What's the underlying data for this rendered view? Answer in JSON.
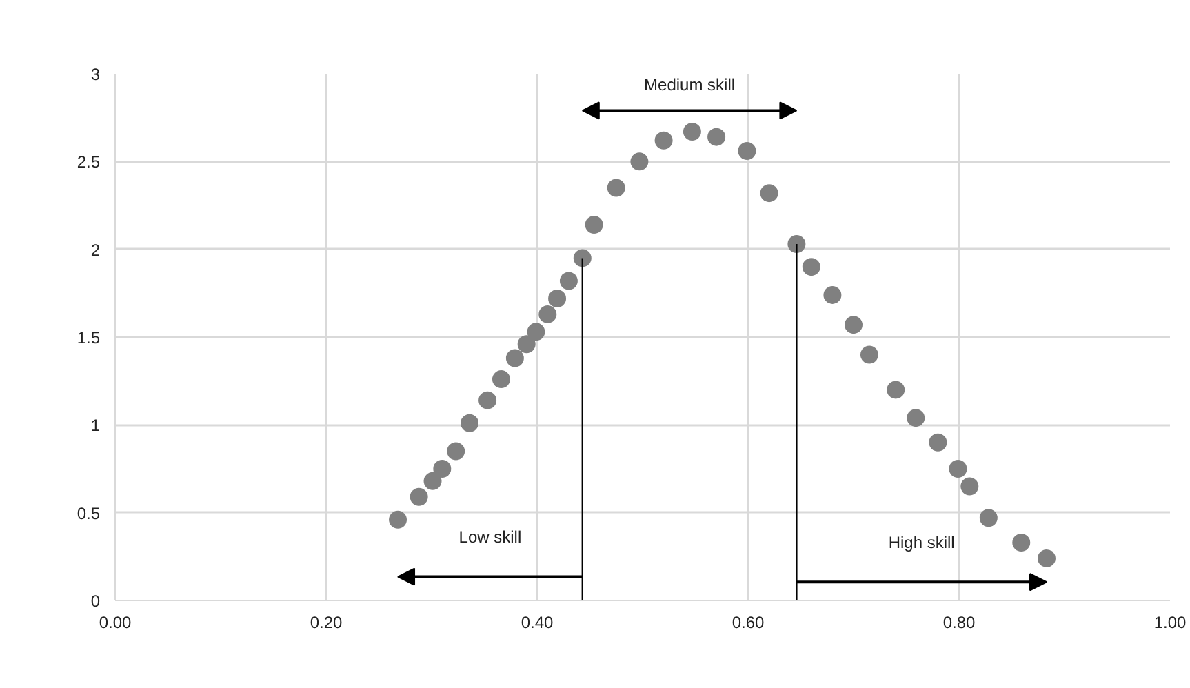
{
  "chart_data": {
    "type": "scatter",
    "x": [
      0.268,
      0.288,
      0.301,
      0.31,
      0.323,
      0.336,
      0.353,
      0.366,
      0.379,
      0.39,
      0.399,
      0.41,
      0.419,
      0.43,
      0.443,
      0.454,
      0.475,
      0.497,
      0.52,
      0.547,
      0.57,
      0.599,
      0.62,
      0.646,
      0.66,
      0.68,
      0.7,
      0.715,
      0.74,
      0.759,
      0.78,
      0.799,
      0.81,
      0.828,
      0.859,
      0.883
    ],
    "series": [
      {
        "color": "#808080",
        "values": [
          0.46,
          0.59,
          0.68,
          0.75,
          0.85,
          1.01,
          1.14,
          1.26,
          1.38,
          1.46,
          1.53,
          1.63,
          1.72,
          1.82,
          1.95,
          2.14,
          2.35,
          2.5,
          2.62,
          2.67,
          2.64,
          2.56,
          2.32,
          2.03,
          1.9,
          1.74,
          1.57,
          1.4,
          1.2,
          1.04,
          0.9,
          0.75,
          0.65,
          0.47,
          0.33,
          0.24
        ]
      }
    ],
    "marker": "circle",
    "xlim": [
      0,
      1
    ],
    "ylim": [
      0,
      3
    ],
    "xticks": [
      {
        "value": 0,
        "label": "0.00"
      },
      {
        "value": 0.2,
        "label": "0.20"
      },
      {
        "value": 0.4,
        "label": "0.40"
      },
      {
        "value": 0.6,
        "label": "0.60"
      },
      {
        "value": 0.8,
        "label": "0.80"
      },
      {
        "value": 1,
        "label": "1.00"
      }
    ],
    "yticks": [
      0,
      0.5,
      1,
      1.5,
      2,
      2.5,
      3
    ],
    "grid": true,
    "ref_lines": [
      {
        "axis": "x",
        "value": 0.443,
        "color": "#000000"
      },
      {
        "axis": "x",
        "value": 0.646,
        "color": "#000000"
      }
    ],
    "annotations": [
      "Low skill",
      "Medium skill",
      "High skill"
    ]
  }
}
